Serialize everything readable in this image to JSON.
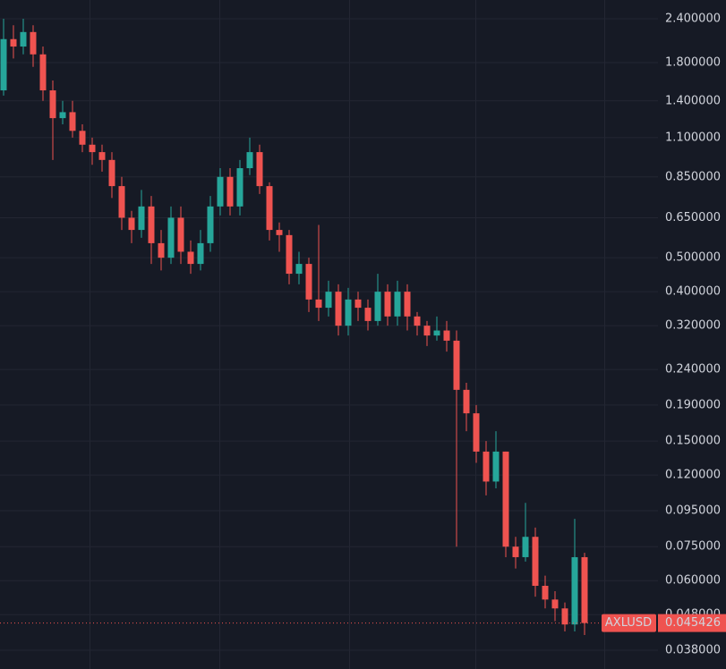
{
  "chart_data": {
    "type": "candlestick",
    "symbol": "AXLUSD",
    "log_scale": true,
    "grid": true,
    "up_color": "#26a69a",
    "down_color": "#ef5350",
    "last_price": {
      "value": 0.045426,
      "label": "0.045426"
    },
    "ylim": [
      0.038,
      2.4
    ],
    "yticks": [
      {
        "value": 2.4,
        "label": "2.400000"
      },
      {
        "value": 1.8,
        "label": "1.800000"
      },
      {
        "value": 1.4,
        "label": "1.400000"
      },
      {
        "value": 1.1,
        "label": "1.100000"
      },
      {
        "value": 0.85,
        "label": "0.850000"
      },
      {
        "value": 0.65,
        "label": "0.650000"
      },
      {
        "value": 0.5,
        "label": "0.500000"
      },
      {
        "value": 0.4,
        "label": "0.400000"
      },
      {
        "value": 0.32,
        "label": "0.320000"
      },
      {
        "value": 0.24,
        "label": "0.240000"
      },
      {
        "value": 0.19,
        "label": "0.190000"
      },
      {
        "value": 0.15,
        "label": "0.150000"
      },
      {
        "value": 0.12,
        "label": "0.120000"
      },
      {
        "value": 0.095,
        "label": "0.095000"
      },
      {
        "value": 0.075,
        "label": "0.075000"
      },
      {
        "value": 0.06,
        "label": "0.060000"
      },
      {
        "value": 0.048,
        "label": "0.048000"
      },
      {
        "value": 0.038,
        "label": "0.038000"
      }
    ],
    "open": [
      1.5,
      2.1,
      2.0,
      2.2,
      1.9,
      1.5,
      1.25,
      1.3,
      1.15,
      1.05,
      1.0,
      0.95,
      0.8,
      0.65,
      0.6,
      0.7,
      0.55,
      0.5,
      0.65,
      0.52,
      0.48,
      0.55,
      0.7,
      0.85,
      0.7,
      0.9,
      1.0,
      0.8,
      0.6,
      0.58,
      0.45,
      0.48,
      0.38,
      0.36,
      0.4,
      0.32,
      0.38,
      0.36,
      0.33,
      0.4,
      0.34,
      0.4,
      0.34,
      0.32,
      0.3,
      0.31,
      0.29,
      0.21,
      0.18,
      0.14,
      0.115,
      0.14,
      0.075,
      0.07,
      0.08,
      0.058,
      0.053,
      0.05,
      0.045,
      0.07
    ],
    "high": [
      2.4,
      2.3,
      2.4,
      2.3,
      2.0,
      1.6,
      1.4,
      1.4,
      1.2,
      1.1,
      1.05,
      1.0,
      0.85,
      0.68,
      0.78,
      0.75,
      0.6,
      0.7,
      0.7,
      0.56,
      0.6,
      0.75,
      0.9,
      0.9,
      0.95,
      1.1,
      1.05,
      0.82,
      0.63,
      0.6,
      0.52,
      0.5,
      0.62,
      0.43,
      0.42,
      0.41,
      0.4,
      0.38,
      0.45,
      0.42,
      0.43,
      0.42,
      0.35,
      0.33,
      0.34,
      0.33,
      0.31,
      0.22,
      0.19,
      0.15,
      0.16,
      0.14,
      0.08,
      0.1,
      0.085,
      0.062,
      0.056,
      0.052,
      0.09,
      0.072
    ],
    "low": [
      1.45,
      1.85,
      1.9,
      1.75,
      1.4,
      0.95,
      1.2,
      1.1,
      1.0,
      0.92,
      0.88,
      0.74,
      0.6,
      0.55,
      0.57,
      0.48,
      0.46,
      0.48,
      0.48,
      0.45,
      0.46,
      0.52,
      0.66,
      0.66,
      0.66,
      0.86,
      0.76,
      0.56,
      0.52,
      0.42,
      0.42,
      0.35,
      0.33,
      0.34,
      0.3,
      0.3,
      0.33,
      0.31,
      0.32,
      0.32,
      0.32,
      0.31,
      0.3,
      0.28,
      0.29,
      0.27,
      0.075,
      0.16,
      0.13,
      0.105,
      0.11,
      0.07,
      0.065,
      0.068,
      0.054,
      0.05,
      0.046,
      0.043,
      0.043,
      0.042
    ],
    "close": [
      2.1,
      2.0,
      2.2,
      1.9,
      1.5,
      1.25,
      1.3,
      1.15,
      1.05,
      1.0,
      0.95,
      0.8,
      0.65,
      0.6,
      0.7,
      0.55,
      0.5,
      0.65,
      0.52,
      0.48,
      0.55,
      0.7,
      0.85,
      0.7,
      0.9,
      1.0,
      0.8,
      0.6,
      0.58,
      0.45,
      0.48,
      0.38,
      0.36,
      0.4,
      0.32,
      0.38,
      0.36,
      0.33,
      0.4,
      0.34,
      0.4,
      0.34,
      0.32,
      0.3,
      0.31,
      0.29,
      0.21,
      0.18,
      0.14,
      0.115,
      0.14,
      0.075,
      0.07,
      0.08,
      0.058,
      0.053,
      0.05,
      0.045,
      0.07,
      0.045426
    ]
  }
}
